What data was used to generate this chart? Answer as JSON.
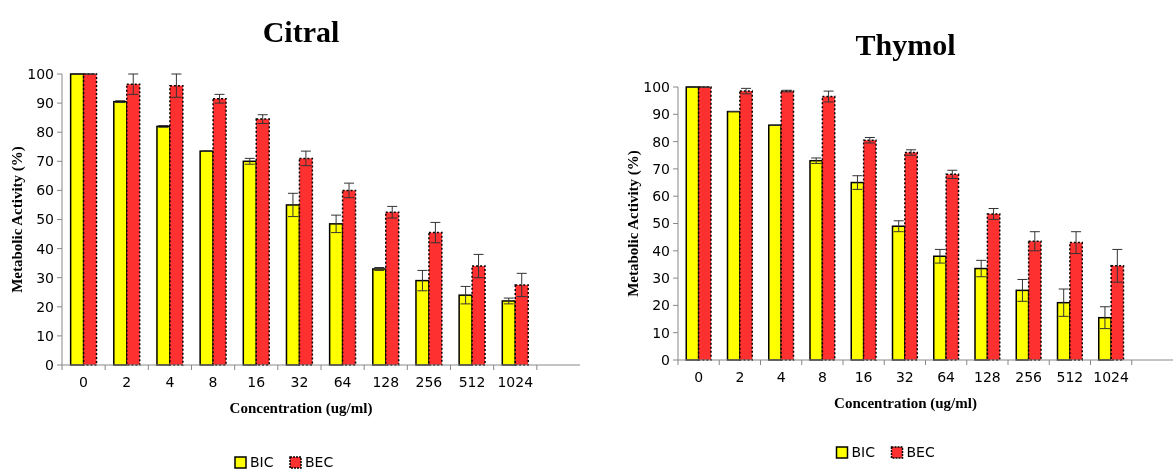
{
  "chart_data": [
    {
      "type": "bar",
      "title": "Citral",
      "xlabel": "Concentration (ug/ml)",
      "ylabel": "Metabolic Activity (%)",
      "categories": [
        "0",
        "2",
        "4",
        "8",
        "16",
        "32",
        "64",
        "128",
        "256",
        "512",
        "1024",
        null
      ],
      "ylim": [
        0,
        100
      ],
      "yticks": [
        0,
        10,
        20,
        30,
        40,
        50,
        60,
        70,
        80,
        90,
        100
      ],
      "legend": "bottom",
      "grid": false,
      "series": [
        {
          "name": "BIC",
          "color": "#ffff00",
          "values": [
            100,
            90.5,
            82,
            73.5,
            70,
            55,
            48.5,
            33,
            29,
            24,
            22,
            null
          ],
          "errors": [
            0,
            0.3,
            0.3,
            0,
            1,
            4,
            3,
            0.5,
            3.5,
            3,
            1,
            null
          ]
        },
        {
          "name": "BEC",
          "color": "#ff3030",
          "values": [
            100,
            96.5,
            96,
            91.5,
            84.5,
            71,
            60,
            52.5,
            45.5,
            34,
            27.5,
            null
          ],
          "errors": [
            0,
            3.5,
            4,
            1.5,
            1.5,
            2.5,
            2.5,
            2,
            3.5,
            4,
            4,
            null
          ]
        }
      ]
    },
    {
      "type": "bar",
      "title": "Thymol",
      "xlabel": "Concentration (ug/ml)",
      "ylabel": "Metabolic Activity (%)",
      "categories": [
        "0",
        "2",
        "4",
        "8",
        "16",
        "32",
        "64",
        "128",
        "256",
        "512",
        "1024",
        null
      ],
      "ylim": [
        0,
        100
      ],
      "yticks": [
        0,
        10,
        20,
        30,
        40,
        50,
        60,
        70,
        80,
        90,
        100
      ],
      "legend": "bottom",
      "grid": false,
      "series": [
        {
          "name": "BIC",
          "color": "#ffff00",
          "values": [
            100,
            91,
            86,
            73,
            65,
            49,
            38,
            33.5,
            25.5,
            21,
            15.5,
            null
          ],
          "errors": [
            0,
            0,
            0,
            1,
            2.5,
            2,
            2.5,
            3,
            4,
            5,
            4,
            null
          ]
        },
        {
          "name": "BEC",
          "color": "#ff3030",
          "values": [
            100,
            98.5,
            98.5,
            96.5,
            80.5,
            76,
            68,
            53.5,
            43.5,
            43,
            34.5,
            null
          ],
          "errors": [
            0,
            1,
            0.3,
            2,
            1,
            1,
            1.5,
            2,
            3.5,
            4,
            6,
            null
          ]
        }
      ]
    }
  ]
}
